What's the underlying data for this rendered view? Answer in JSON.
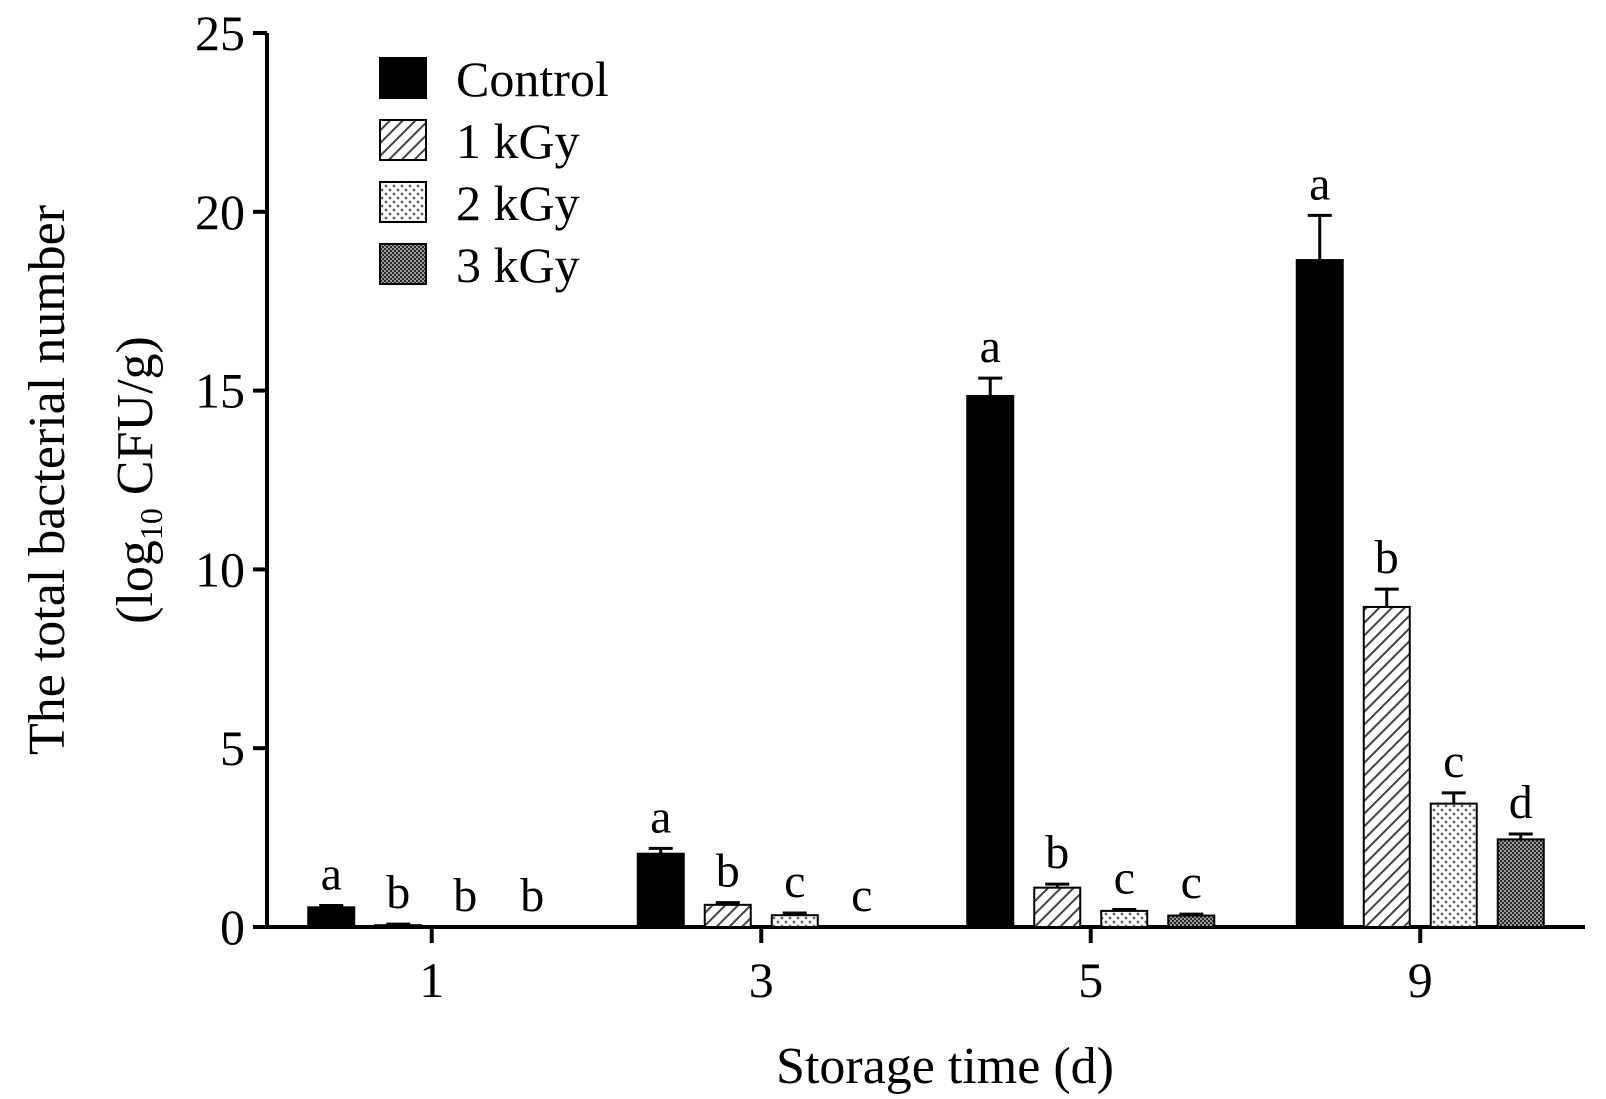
{
  "chart_data": {
    "type": "bar",
    "title": "",
    "xlabel": "Storage time (d)",
    "ylabel_line1": "The total bacterial number",
    "ylabel_line2_pre": "(log",
    "ylabel_line2_sub": "10",
    "ylabel_line2_post": " CFU/g)",
    "ylim": [
      0,
      25
    ],
    "yticks": [
      "0",
      "5",
      "10",
      "15",
      "20",
      "25"
    ],
    "categories": [
      "1",
      "3",
      "5",
      "9"
    ],
    "legend_position": "top-left",
    "series": [
      {
        "name": "Control",
        "fill": "solid",
        "color": "#000000",
        "values": [
          0.55,
          2.05,
          14.85,
          18.65
        ],
        "errors": [
          0.05,
          0.15,
          0.5,
          1.25
        ],
        "letters": [
          "a",
          "a",
          "a",
          "a"
        ]
      },
      {
        "name": "1 kGy",
        "fill": "diagonal",
        "color": "#555555",
        "values": [
          0.05,
          0.62,
          1.1,
          8.95
        ],
        "errors": [
          0.03,
          0.06,
          0.1,
          0.5
        ],
        "letters": [
          "b",
          "b",
          "b",
          "b"
        ]
      },
      {
        "name": "2 kGy",
        "fill": "dots",
        "color": "#777777",
        "values": [
          0.0,
          0.33,
          0.45,
          3.45
        ],
        "errors": [
          0.0,
          0.06,
          0.04,
          0.3
        ],
        "letters": [
          "b",
          "c",
          "c",
          "c"
        ]
      },
      {
        "name": "3 kGy",
        "fill": "crosshatch",
        "color": "#333333",
        "values": [
          0.0,
          0.0,
          0.32,
          2.45
        ],
        "errors": [
          0.0,
          0.0,
          0.04,
          0.15
        ],
        "letters": [
          "b",
          "c",
          "c",
          "d"
        ]
      }
    ]
  }
}
